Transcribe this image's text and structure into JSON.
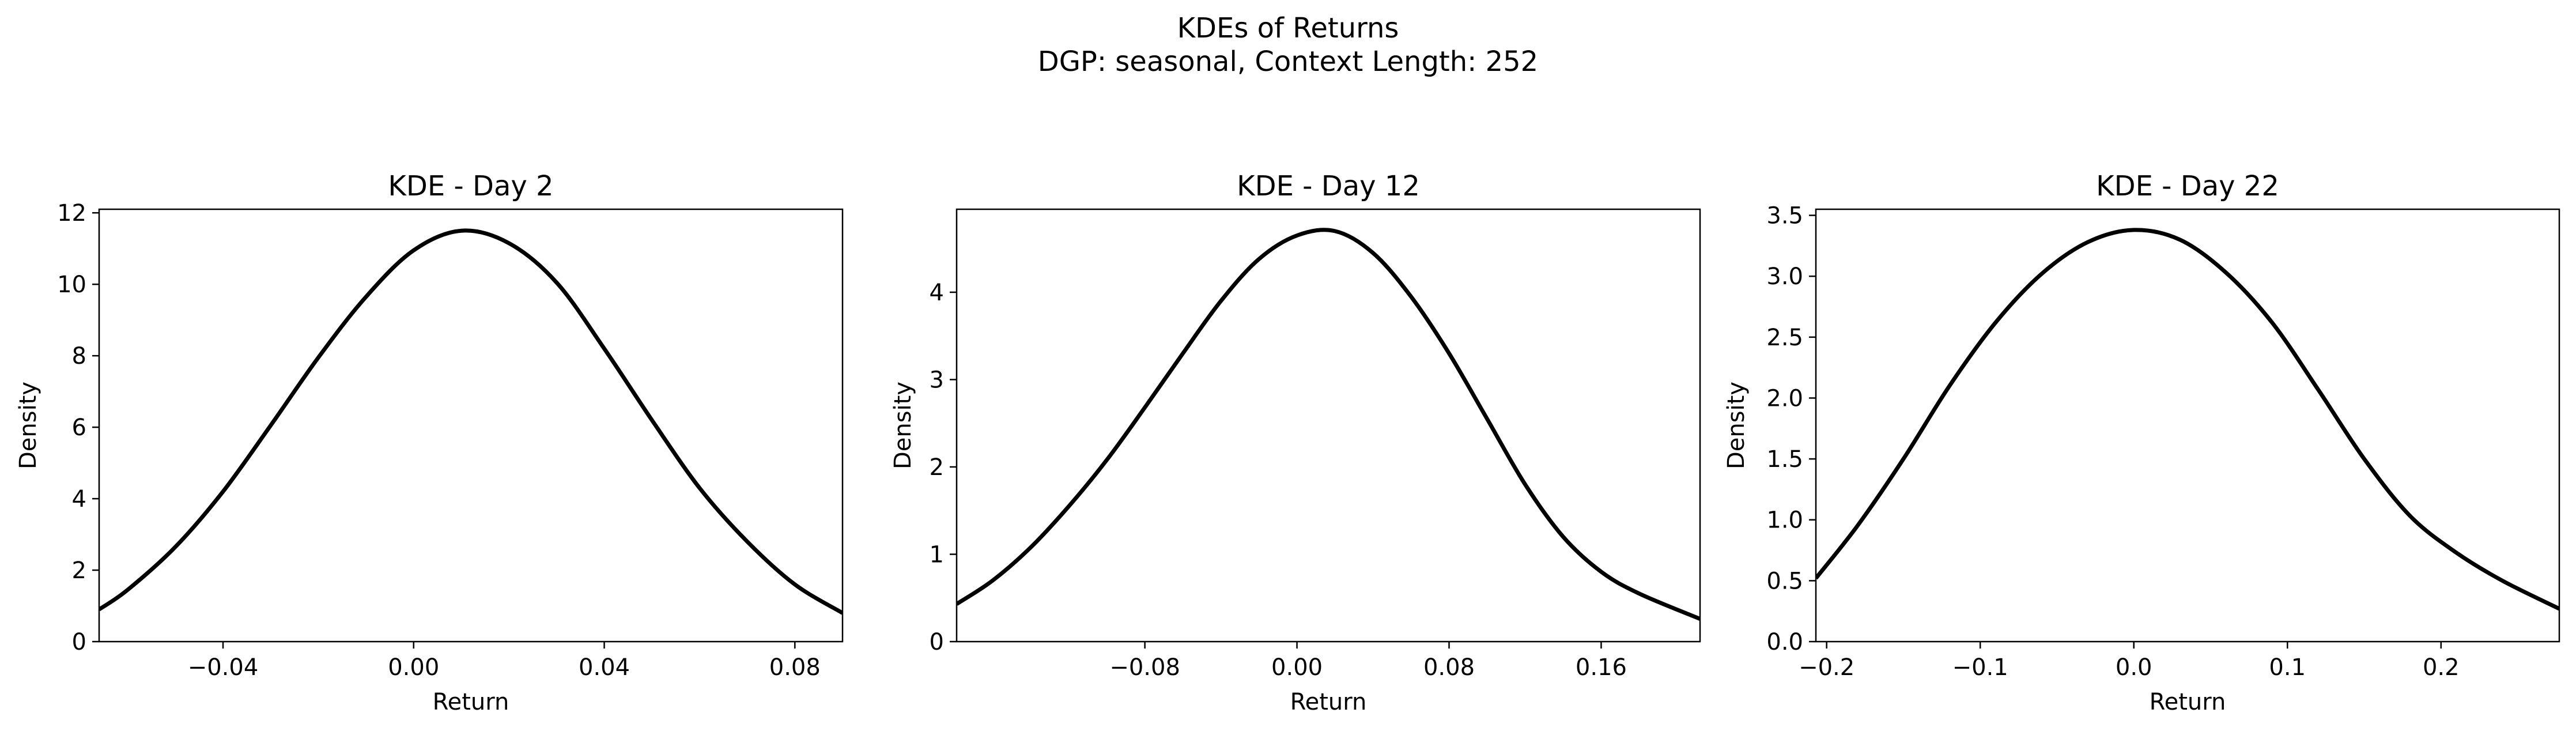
{
  "figure": {
    "title_line1": "KDEs of Returns",
    "title_line2": "DGP: seasonal, Context Length: 252"
  },
  "chart_data": [
    {
      "type": "line",
      "title": "KDE - Day 2",
      "xlabel": "Return",
      "ylabel": "Density",
      "xlim": [
        -0.066,
        0.09
      ],
      "ylim": [
        0,
        12.1
      ],
      "xticks": [
        -0.04,
        0.0,
        0.04,
        0.08
      ],
      "xtick_labels": [
        "−0.04",
        "0.00",
        "0.04",
        "0.08"
      ],
      "yticks": [
        0,
        2,
        4,
        6,
        8,
        10,
        12
      ],
      "ytick_labels": [
        "0",
        "2",
        "4",
        "6",
        "8",
        "10",
        "12"
      ],
      "grid": false,
      "line_color": "#000000",
      "series": [
        {
          "x": [
            -0.066,
            -0.06,
            -0.05,
            -0.04,
            -0.03,
            -0.02,
            -0.01,
            0.0,
            0.01,
            0.02,
            0.03,
            0.04,
            0.05,
            0.06,
            0.07,
            0.08,
            0.09
          ],
          "values": [
            0.9,
            1.45,
            2.65,
            4.2,
            6.05,
            7.95,
            9.65,
            10.95,
            11.5,
            11.15,
            10.05,
            8.2,
            6.2,
            4.3,
            2.8,
            1.6,
            0.8
          ]
        }
      ]
    },
    {
      "type": "line",
      "title": "KDE - Day 12",
      "xlabel": "Return",
      "ylabel": "Density",
      "xlim": [
        -0.179,
        0.212
      ],
      "ylim": [
        0,
        4.95
      ],
      "xticks": [
        -0.08,
        0.0,
        0.08,
        0.16
      ],
      "xtick_labels": [
        "−0.08",
        "0.00",
        "0.08",
        "0.16"
      ],
      "yticks": [
        0,
        1,
        2,
        3,
        4
      ],
      "ytick_labels": [
        "0",
        "1",
        "2",
        "3",
        "4"
      ],
      "grid": false,
      "line_color": "#000000",
      "series": [
        {
          "x": [
            -0.179,
            -0.16,
            -0.14,
            -0.12,
            -0.1,
            -0.08,
            -0.06,
            -0.04,
            -0.02,
            0.0,
            0.02,
            0.04,
            0.06,
            0.08,
            0.1,
            0.12,
            0.14,
            0.16,
            0.18,
            0.212
          ],
          "values": [
            0.43,
            0.7,
            1.08,
            1.55,
            2.08,
            2.68,
            3.3,
            3.9,
            4.38,
            4.65,
            4.7,
            4.45,
            3.95,
            3.3,
            2.55,
            1.8,
            1.2,
            0.8,
            0.55,
            0.26
          ]
        }
      ]
    },
    {
      "type": "line",
      "title": "KDE - Day 22",
      "xlabel": "Return",
      "ylabel": "Density",
      "xlim": [
        -0.207,
        0.277
      ],
      "ylim": [
        0,
        3.55
      ],
      "xticks": [
        -0.2,
        -0.1,
        0.0,
        0.1,
        0.2
      ],
      "xtick_labels": [
        "−0.2",
        "−0.1",
        "0.0",
        "0.1",
        "0.2"
      ],
      "yticks": [
        0,
        0.5,
        1,
        1.5,
        2,
        2.5,
        3,
        3.5
      ],
      "ytick_labels": [
        "0.0",
        "0.5",
        "1.0",
        "1.5",
        "2.0",
        "2.5",
        "3.0",
        "3.5"
      ],
      "grid": false,
      "line_color": "#000000",
      "series": [
        {
          "x": [
            -0.207,
            -0.18,
            -0.15,
            -0.12,
            -0.09,
            -0.06,
            -0.03,
            0.0,
            0.03,
            0.06,
            0.09,
            0.12,
            0.15,
            0.18,
            0.21,
            0.24,
            0.277
          ],
          "values": [
            0.52,
            0.95,
            1.5,
            2.1,
            2.62,
            3.02,
            3.28,
            3.38,
            3.3,
            3.03,
            2.62,
            2.07,
            1.5,
            1.03,
            0.73,
            0.5,
            0.27
          ]
        }
      ]
    }
  ]
}
